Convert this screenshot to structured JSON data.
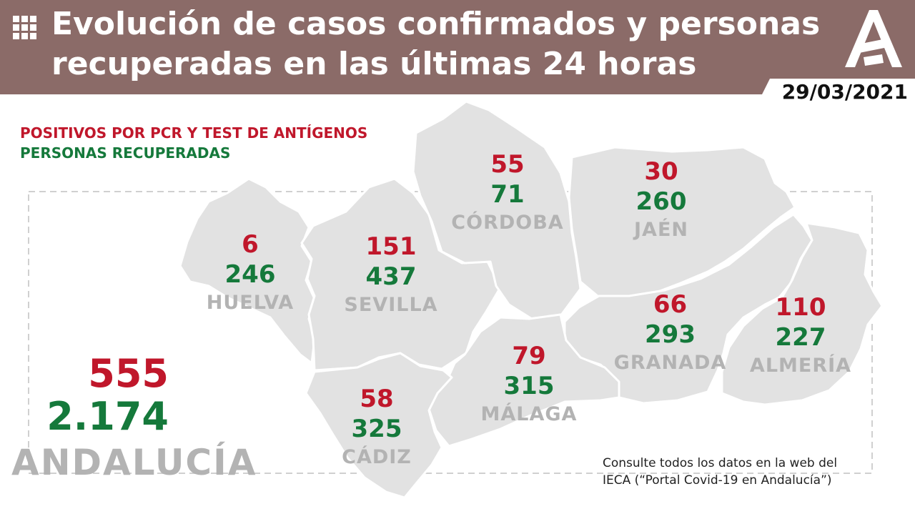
{
  "header": {
    "title_line1": "Evolución de casos confirmados y personas",
    "title_line2": "recuperadas en las últimas 24 horas",
    "date": "29/03/2021",
    "bg_color": "#8b6b68",
    "logo_icon": "junta-de-andalucia-logo-icon"
  },
  "legend": {
    "positives": "POSITIVOS POR PCR Y TEST DE ANTÍGENOS",
    "recovered": "PERSONAS RECUPERADAS",
    "positives_color": "#c0172b",
    "recovered_color": "#15793b"
  },
  "provinces": [
    {
      "name": "HUELVA",
      "positives": "6",
      "recovered": "246"
    },
    {
      "name": "SEVILLA",
      "positives": "151",
      "recovered": "437"
    },
    {
      "name": "CÓRDOBA",
      "positives": "55",
      "recovered": "71"
    },
    {
      "name": "JAÉN",
      "positives": "30",
      "recovered": "260"
    },
    {
      "name": "GRANADA",
      "positives": "66",
      "recovered": "293"
    },
    {
      "name": "ALMERÍA",
      "positives": "110",
      "recovered": "227"
    },
    {
      "name": "MÁLAGA",
      "positives": "79",
      "recovered": "315"
    },
    {
      "name": "CÁDIZ",
      "positives": "58",
      "recovered": "325"
    }
  ],
  "total": {
    "name": "ANDALUCÍA",
    "positives": "555",
    "recovered": "2.174"
  },
  "footnote": {
    "line1": "Consulte todos los datos en la web del",
    "line2": "IECA (“Portal Covid-19 en Andalucía”)"
  }
}
